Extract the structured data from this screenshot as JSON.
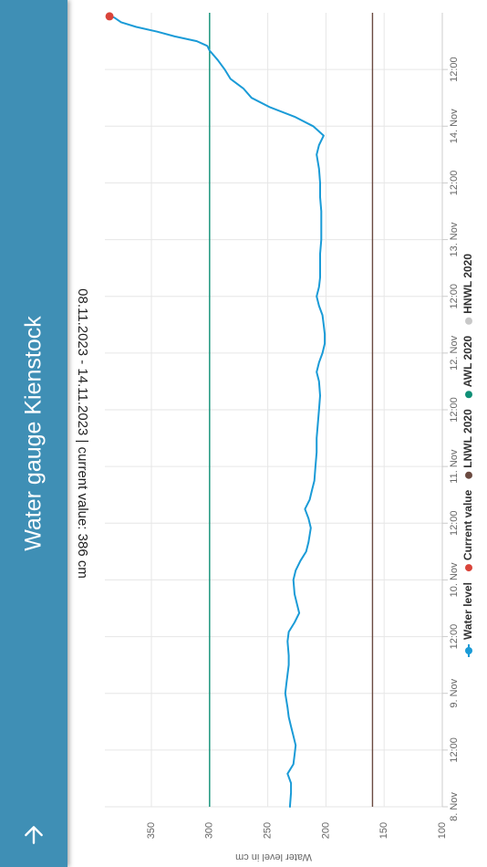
{
  "header": {
    "title": "Water gauge Kienstock",
    "back_icon": "arrow-left-icon"
  },
  "colors": {
    "header_bg": "#3f8fb5",
    "water_level": "#1a9bd7",
    "current_value": "#d9443a",
    "lnwl": "#6b4a40",
    "awl": "#0f8f76",
    "hnwl": "#c8c8c8"
  },
  "chart_data": {
    "type": "line",
    "subtitle": "08.11.2023 - 14.11.2023 | current value: 386 cm",
    "ylabel": "Water level in cm",
    "ylim": [
      100,
      390
    ],
    "yticks": [
      100,
      150,
      200,
      250,
      300,
      350
    ],
    "x_range": [
      "2023-11-08 00:00",
      "2023-11-15 00:00"
    ],
    "x_ticks": [
      {
        "t": "2023-11-08 00:00",
        "label": "8. Nov"
      },
      {
        "t": "2023-11-08 12:00",
        "label": "12:00"
      },
      {
        "t": "2023-11-09 00:00",
        "label": "9. Nov"
      },
      {
        "t": "2023-11-09 12:00",
        "label": "12:00"
      },
      {
        "t": "2023-11-10 00:00",
        "label": "10. Nov"
      },
      {
        "t": "2023-11-10 12:00",
        "label": "12:00"
      },
      {
        "t": "2023-11-11 00:00",
        "label": "11. Nov"
      },
      {
        "t": "2023-11-11 12:00",
        "label": "12:00"
      },
      {
        "t": "2023-11-12 00:00",
        "label": "12. Nov"
      },
      {
        "t": "2023-11-12 12:00",
        "label": "12:00"
      },
      {
        "t": "2023-11-13 00:00",
        "label": "13. Nov"
      },
      {
        "t": "2023-11-13 12:00",
        "label": "12:00"
      },
      {
        "t": "2023-11-14 00:00",
        "label": "14. Nov"
      },
      {
        "t": "2023-11-14 12:00",
        "label": "12:00"
      }
    ],
    "series": [
      {
        "name": "Water level",
        "points": [
          [
            "2023-11-08 00:00",
            231
          ],
          [
            "2023-11-08 03:00",
            230
          ],
          [
            "2023-11-08 05:00",
            230
          ],
          [
            "2023-11-08 07:00",
            233
          ],
          [
            "2023-11-08 09:00",
            228
          ],
          [
            "2023-11-08 11:00",
            227
          ],
          [
            "2023-11-08 13:00",
            226
          ],
          [
            "2023-11-08 15:00",
            228
          ],
          [
            "2023-11-08 17:00",
            230
          ],
          [
            "2023-11-08 19:00",
            232
          ],
          [
            "2023-11-08 21:00",
            233
          ],
          [
            "2023-11-09 00:00",
            235
          ],
          [
            "2023-11-09 02:00",
            234
          ],
          [
            "2023-11-09 04:00",
            233
          ],
          [
            "2023-11-09 06:00",
            232
          ],
          [
            "2023-11-09 08:00",
            232
          ],
          [
            "2023-11-09 11:00",
            233
          ],
          [
            "2023-11-09 13:00",
            232
          ],
          [
            "2023-11-09 15:00",
            227
          ],
          [
            "2023-11-09 17:00",
            223
          ],
          [
            "2023-11-09 19:00",
            225
          ],
          [
            "2023-11-09 21:00",
            227
          ],
          [
            "2023-11-10 00:00",
            228
          ],
          [
            "2023-11-10 02:00",
            226
          ],
          [
            "2023-11-10 04:00",
            222
          ],
          [
            "2023-11-10 06:00",
            217
          ],
          [
            "2023-11-10 08:00",
            215
          ],
          [
            "2023-11-10 11:00",
            213
          ],
          [
            "2023-11-10 13:00",
            215
          ],
          [
            "2023-11-10 15:00",
            218
          ],
          [
            "2023-11-10 17:00",
            214
          ],
          [
            "2023-11-10 19:00",
            212
          ],
          [
            "2023-11-10 21:00",
            210
          ],
          [
            "2023-11-11 00:00",
            209
          ],
          [
            "2023-11-11 03:00",
            208
          ],
          [
            "2023-11-11 06:00",
            208
          ],
          [
            "2023-11-11 09:00",
            207
          ],
          [
            "2023-11-11 12:00",
            206
          ],
          [
            "2023-11-11 15:00",
            205
          ],
          [
            "2023-11-11 18:00",
            206
          ],
          [
            "2023-11-11 20:00",
            208
          ],
          [
            "2023-11-11 22:00",
            206
          ],
          [
            "2023-11-12 00:00",
            203
          ],
          [
            "2023-11-12 02:00",
            201
          ],
          [
            "2023-11-12 04:00",
            201
          ],
          [
            "2023-11-12 06:00",
            202
          ],
          [
            "2023-11-12 08:00",
            203
          ],
          [
            "2023-11-12 10:00",
            206
          ],
          [
            "2023-11-12 12:00",
            208
          ],
          [
            "2023-11-12 14:00",
            206
          ],
          [
            "2023-11-12 16:00",
            205
          ],
          [
            "2023-11-12 18:00",
            205
          ],
          [
            "2023-11-12 21:00",
            205
          ],
          [
            "2023-11-13 00:00",
            204
          ],
          [
            "2023-11-13 03:00",
            204
          ],
          [
            "2023-11-13 06:00",
            204
          ],
          [
            "2023-11-13 09:00",
            205
          ],
          [
            "2023-11-13 12:00",
            205
          ],
          [
            "2023-11-13 15:00",
            206
          ],
          [
            "2023-11-13 18:00",
            208
          ],
          [
            "2023-11-13 20:00",
            206
          ],
          [
            "2023-11-13 22:00",
            202
          ],
          [
            "2023-11-14 00:00",
            211
          ],
          [
            "2023-11-14 02:00",
            227
          ],
          [
            "2023-11-14 04:00",
            248
          ],
          [
            "2023-11-14 06:00",
            264
          ],
          [
            "2023-11-14 08:00",
            271
          ],
          [
            "2023-11-14 10:00",
            282
          ],
          [
            "2023-11-14 12:00",
            287
          ],
          [
            "2023-11-14 14:00",
            293
          ],
          [
            "2023-11-14 16:00",
            300
          ],
          [
            "2023-11-14 17:00",
            302
          ],
          [
            "2023-11-14 18:00",
            311
          ],
          [
            "2023-11-14 19:00",
            330
          ],
          [
            "2023-11-14 20:00",
            345
          ],
          [
            "2023-11-14 21:00",
            363
          ],
          [
            "2023-11-14 22:00",
            376
          ],
          [
            "2023-11-14 23:00",
            382
          ],
          [
            "2023-11-14 23:15",
            386
          ]
        ]
      },
      {
        "name": "Current value",
        "points": [
          [
            "2023-11-14 23:15",
            386
          ]
        ]
      }
    ],
    "reference_lines": [
      {
        "name": "LNWL 2020",
        "value": 160
      },
      {
        "name": "AWL 2020",
        "value": 300
      },
      {
        "name": "HNWL 2020",
        "value": null
      }
    ],
    "legend": [
      {
        "label": "Water level",
        "marker": "line-dot",
        "color_key": "water_level"
      },
      {
        "label": "Current value",
        "marker": "dot",
        "color_key": "current_value"
      },
      {
        "label": "LNWL 2020",
        "marker": "dot",
        "color_key": "lnwl"
      },
      {
        "label": "AWL 2020",
        "marker": "dot",
        "color_key": "awl"
      },
      {
        "label": "HNWL 2020",
        "marker": "dot",
        "color_key": "hnwl",
        "hidden": true
      }
    ],
    "legend_placement": "bottom",
    "grid": true,
    "orientation": "rotated-90"
  }
}
